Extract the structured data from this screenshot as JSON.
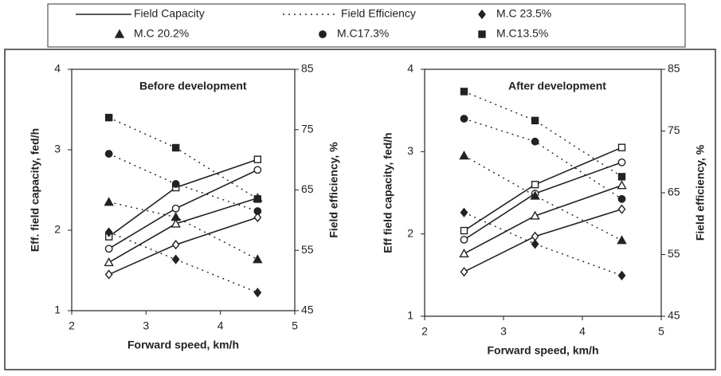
{
  "legend": {
    "lines": [
      {
        "label": "Field Capacity",
        "dash": false
      },
      {
        "label": "Field Efficiency",
        "dash": true
      }
    ],
    "markers": [
      {
        "label": "M.C 23.5%",
        "marker": "diamond"
      },
      {
        "label": "M.C 20.2%",
        "marker": "triangle"
      },
      {
        "label": "M.C17.3%",
        "marker": "circle"
      },
      {
        "label": "M.C13.5%",
        "marker": "square"
      }
    ]
  },
  "chart_data": [
    {
      "type": "line",
      "title": "Before development",
      "x_label": "Forward speed, km/h",
      "y_label": "Eff. field capacity, fed/h",
      "y2_label": "Field efficiency, %",
      "x": [
        2.5,
        3.4,
        4.5
      ],
      "xlim": [
        2,
        5
      ],
      "xticks": [
        2,
        3,
        4,
        5
      ],
      "ylim": [
        1,
        4
      ],
      "yticks": [
        1,
        2,
        3,
        4
      ],
      "y2lim": [
        45,
        85
      ],
      "y2ticks": [
        45,
        55,
        65,
        75,
        85
      ],
      "color": "#222222",
      "series": [
        {
          "marker": "diamond",
          "dash": false,
          "axis": "y",
          "values": [
            1.45,
            1.82,
            2.16
          ]
        },
        {
          "marker": "triangle",
          "dash": false,
          "axis": "y",
          "values": [
            1.6,
            2.08,
            2.4
          ]
        },
        {
          "marker": "circle",
          "dash": false,
          "axis": "y",
          "values": [
            1.77,
            2.27,
            2.75
          ]
        },
        {
          "marker": "square",
          "dash": false,
          "axis": "y",
          "values": [
            1.92,
            2.53,
            2.88
          ]
        },
        {
          "marker": "diamond",
          "dash": true,
          "axis": "y2",
          "values": [
            58,
            53.5,
            48
          ]
        },
        {
          "marker": "triangle",
          "dash": true,
          "axis": "y2",
          "values": [
            63,
            60.5,
            53.5
          ]
        },
        {
          "marker": "circle",
          "dash": true,
          "axis": "y2",
          "values": [
            71,
            66,
            61.5
          ]
        },
        {
          "marker": "square",
          "dash": true,
          "axis": "y2",
          "values": [
            77,
            72,
            63.5
          ]
        }
      ]
    },
    {
      "type": "line",
      "title": "After development",
      "x_label": "Forward speed, km/h",
      "y_label": "Eff field capacity, fed/h",
      "y2_label": "Field efficiency, %",
      "x": [
        2.5,
        3.4,
        4.5
      ],
      "xlim": [
        2,
        5
      ],
      "xticks": [
        2,
        3,
        4,
        5
      ],
      "ylim": [
        1,
        4
      ],
      "yticks": [
        1,
        2,
        3,
        4
      ],
      "y2lim": [
        45,
        85
      ],
      "y2ticks": [
        45,
        55,
        65,
        75,
        85
      ],
      "color": "#222222",
      "series": [
        {
          "marker": "diamond",
          "dash": false,
          "axis": "y",
          "values": [
            1.54,
            1.97,
            2.3
          ]
        },
        {
          "marker": "triangle",
          "dash": false,
          "axis": "y",
          "values": [
            1.76,
            2.22,
            2.59
          ]
        },
        {
          "marker": "circle",
          "dash": false,
          "axis": "y",
          "values": [
            1.93,
            2.49,
            2.87
          ]
        },
        {
          "marker": "square",
          "dash": false,
          "axis": "y",
          "values": [
            2.04,
            2.6,
            3.05
          ]
        },
        {
          "marker": "diamond",
          "dash": true,
          "axis": "y2",
          "values": [
            61.8,
            56.7,
            51.6
          ]
        },
        {
          "marker": "triangle",
          "dash": true,
          "axis": "y2",
          "values": [
            71,
            64.5,
            57.3
          ]
        },
        {
          "marker": "circle",
          "dash": true,
          "axis": "y2",
          "values": [
            77,
            73.3,
            64
          ]
        },
        {
          "marker": "square",
          "dash": true,
          "axis": "y2",
          "values": [
            81.4,
            76.7,
            67.6
          ]
        }
      ]
    }
  ]
}
